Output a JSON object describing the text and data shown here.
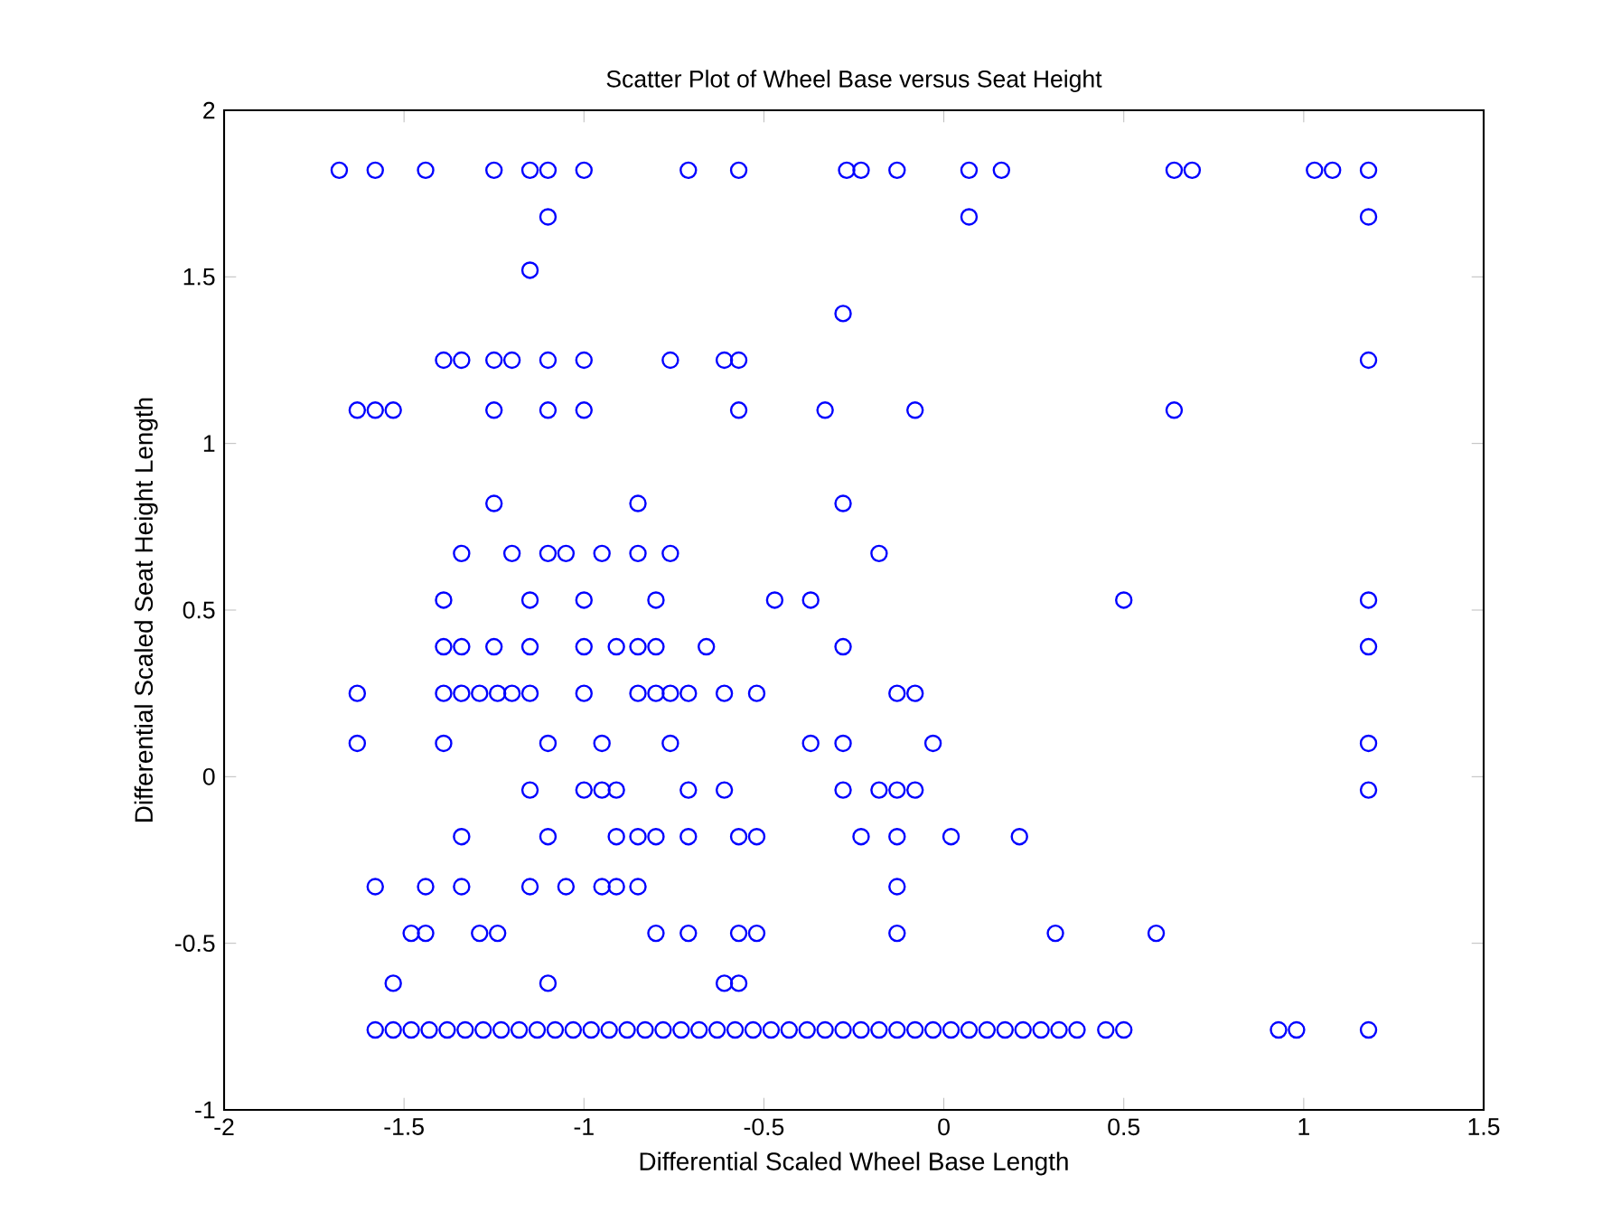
{
  "chart_data": {
    "type": "scatter",
    "title": "Scatter Plot of Wheel Base versus Seat Height",
    "xlabel": "Differential Scaled Wheel Base Length",
    "ylabel": "Differential Scaled Seat Height Length",
    "xlim": [
      -2,
      1.5
    ],
    "ylim": [
      -1,
      2
    ],
    "xticks": [
      -2,
      -1.5,
      -1,
      -0.5,
      0,
      0.5,
      1,
      1.5
    ],
    "yticks": [
      -1,
      -0.5,
      0,
      0.5,
      1,
      1.5,
      2
    ],
    "grid": false,
    "marker": "circle",
    "series": [
      {
        "color": "#0000ff",
        "x": [
          -1.68,
          -1.58,
          -1.44,
          -1.25,
          -1.15,
          -1.1,
          -1.0,
          -0.71,
          -0.57,
          -0.27,
          -0.23,
          -0.13,
          0.07,
          0.16,
          0.64,
          0.69,
          1.03,
          1.08,
          1.18,
          -1.1,
          0.07,
          1.18,
          -1.15,
          -0.28,
          -1.39,
          -1.34,
          -1.25,
          -1.2,
          -1.1,
          -1.0,
          -0.76,
          -0.61,
          -0.57,
          1.18,
          -1.63,
          -1.58,
          -1.53,
          -1.25,
          -1.1,
          -1.0,
          -0.57,
          -0.33,
          -0.08,
          0.64,
          -1.25,
          -0.85,
          -0.28,
          -1.34,
          -1.2,
          -1.1,
          -1.05,
          -0.95,
          -0.85,
          -0.76,
          -0.18,
          -1.39,
          -1.15,
          -1.0,
          -0.8,
          -0.47,
          -0.37,
          0.5,
          1.18,
          -1.39,
          -1.34,
          -1.25,
          -1.15,
          -1.0,
          -0.91,
          -0.85,
          -0.8,
          -0.66,
          -0.28,
          1.18,
          -1.63,
          -1.39,
          -1.34,
          -1.29,
          -1.24,
          -1.2,
          -1.15,
          -1.0,
          -0.85,
          -0.8,
          -0.76,
          -0.71,
          -0.61,
          -0.52,
          -0.13,
          -0.08,
          -1.63,
          -1.39,
          -1.1,
          -0.95,
          -0.76,
          -0.37,
          -0.28,
          -0.03,
          1.18,
          -1.15,
          -1.0,
          -0.95,
          -0.91,
          -0.71,
          -0.61,
          -0.28,
          -0.18,
          -0.13,
          -0.08,
          1.18,
          -1.34,
          -1.1,
          -0.91,
          -0.85,
          -0.8,
          -0.71,
          -0.57,
          -0.52,
          -0.23,
          -0.13,
          0.02,
          0.21,
          -1.58,
          -1.44,
          -1.34,
          -1.15,
          -1.05,
          -0.95,
          -0.91,
          -0.85,
          -0.13,
          -1.48,
          -1.44,
          -1.29,
          -1.24,
          -0.8,
          -0.71,
          -0.57,
          -0.52,
          -0.13,
          0.31,
          0.59,
          -1.53,
          -1.1,
          -0.61,
          -0.57,
          -1.58,
          -1.53,
          -1.48,
          -1.43,
          -1.38,
          -1.33,
          -1.28,
          -1.23,
          -1.18,
          -1.13,
          -1.08,
          -1.03,
          -0.98,
          -0.93,
          -0.88,
          -0.83,
          -0.78,
          -0.73,
          -0.68,
          -0.63,
          -0.58,
          -0.53,
          -0.48,
          -0.43,
          -0.38,
          -0.33,
          -0.28,
          -0.23,
          -0.18,
          -0.13,
          -0.08,
          -0.03,
          0.02,
          0.07,
          0.12,
          0.17,
          0.22,
          0.27,
          0.32,
          0.37,
          0.45,
          0.5,
          0.93,
          0.98,
          1.18
        ],
        "values": [
          1.82,
          1.82,
          1.82,
          1.82,
          1.82,
          1.82,
          1.82,
          1.82,
          1.82,
          1.82,
          1.82,
          1.82,
          1.82,
          1.82,
          1.82,
          1.82,
          1.82,
          1.82,
          1.82,
          1.68,
          1.68,
          1.68,
          1.52,
          1.39,
          1.25,
          1.25,
          1.25,
          1.25,
          1.25,
          1.25,
          1.25,
          1.25,
          1.25,
          1.25,
          1.1,
          1.1,
          1.1,
          1.1,
          1.1,
          1.1,
          1.1,
          1.1,
          1.1,
          1.1,
          0.82,
          0.82,
          0.82,
          0.67,
          0.67,
          0.67,
          0.67,
          0.67,
          0.67,
          0.67,
          0.67,
          0.53,
          0.53,
          0.53,
          0.53,
          0.53,
          0.53,
          0.53,
          0.53,
          0.39,
          0.39,
          0.39,
          0.39,
          0.39,
          0.39,
          0.39,
          0.39,
          0.39,
          0.39,
          0.39,
          0.25,
          0.25,
          0.25,
          0.25,
          0.25,
          0.25,
          0.25,
          0.25,
          0.25,
          0.25,
          0.25,
          0.25,
          0.25,
          0.25,
          0.25,
          0.25,
          0.1,
          0.1,
          0.1,
          0.1,
          0.1,
          0.1,
          0.1,
          0.1,
          0.1,
          -0.04,
          -0.04,
          -0.04,
          -0.04,
          -0.04,
          -0.04,
          -0.04,
          -0.04,
          -0.04,
          -0.04,
          -0.04,
          -0.18,
          -0.18,
          -0.18,
          -0.18,
          -0.18,
          -0.18,
          -0.18,
          -0.18,
          -0.18,
          -0.18,
          -0.18,
          -0.18,
          -0.33,
          -0.33,
          -0.33,
          -0.33,
          -0.33,
          -0.33,
          -0.33,
          -0.33,
          -0.33,
          -0.47,
          -0.47,
          -0.47,
          -0.47,
          -0.47,
          -0.47,
          -0.47,
          -0.47,
          -0.47,
          -0.47,
          -0.47,
          -0.62,
          -0.62,
          -0.62,
          -0.62,
          -0.76,
          -0.76,
          -0.76,
          -0.76,
          -0.76,
          -0.76,
          -0.76,
          -0.76,
          -0.76,
          -0.76,
          -0.76,
          -0.76,
          -0.76,
          -0.76,
          -0.76,
          -0.76,
          -0.76,
          -0.76,
          -0.76,
          -0.76,
          -0.76,
          -0.76,
          -0.76,
          -0.76,
          -0.76,
          -0.76,
          -0.76,
          -0.76,
          -0.76,
          -0.76,
          -0.76,
          -0.76,
          -0.76,
          -0.76,
          -0.76,
          -0.76,
          -0.76,
          -0.76,
          -0.76,
          -0.76,
          -0.76,
          -0.76,
          -0.76,
          -0.76,
          -0.76
        ]
      }
    ]
  }
}
